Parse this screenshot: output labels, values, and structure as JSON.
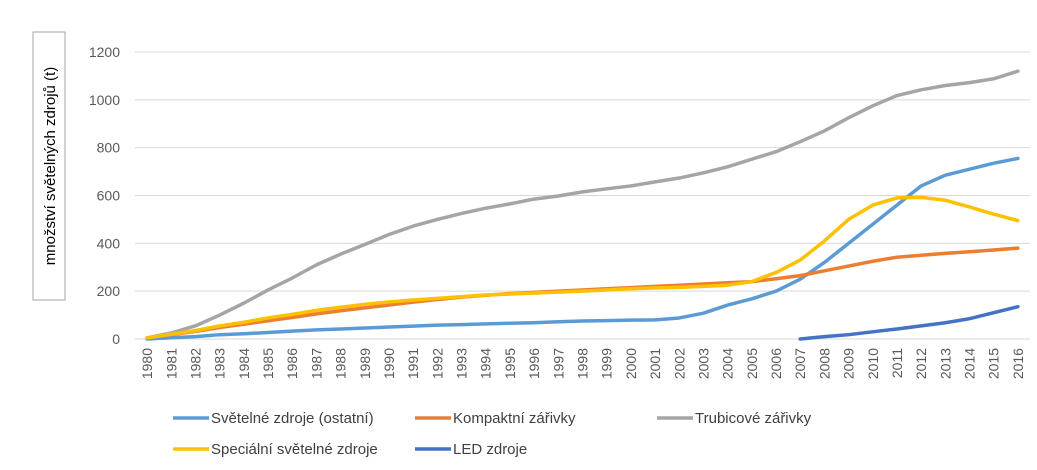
{
  "chart_data": {
    "type": "line",
    "title": "",
    "xlabel": "",
    "ylabel": "množství světelných zdrojů (t)",
    "ylim": [
      0,
      1200
    ],
    "yticks": [
      0,
      200,
      400,
      600,
      800,
      1000,
      1200
    ],
    "grid": "horizontal",
    "legend_position": "bottom",
    "x": [
      "1980",
      "1981",
      "1982",
      "1983",
      "1984",
      "1985",
      "1986",
      "1987",
      "1988",
      "1989",
      "1990",
      "1991",
      "1992",
      "1993",
      "1994",
      "1995",
      "1996",
      "1997",
      "1998",
      "1999",
      "2000",
      "2001",
      "2002",
      "2003",
      "2004",
      "2005",
      "2006",
      "2007",
      "2008",
      "2009",
      "2010",
      "2011",
      "2012",
      "2013",
      "2014",
      "2015",
      "2016"
    ],
    "series": [
      {
        "name": "Světelné zdroje (ostatní)",
        "color": "#5B9BD5",
        "values": [
          0,
          5,
          10,
          18,
          22,
          27,
          33,
          38,
          42,
          46,
          50,
          54,
          58,
          60,
          63,
          66,
          68,
          72,
          75,
          77,
          79,
          80,
          88,
          108,
          142,
          168,
          200,
          250,
          320,
          400,
          480,
          560,
          640,
          685,
          710,
          735,
          755
        ]
      },
      {
        "name": "Kompaktní zářivky",
        "color": "#ED7D31",
        "values": [
          5,
          18,
          32,
          48,
          62,
          76,
          90,
          105,
          118,
          130,
          142,
          154,
          165,
          175,
          183,
          190,
          195,
          200,
          205,
          210,
          215,
          220,
          225,
          230,
          235,
          240,
          252,
          265,
          285,
          305,
          325,
          342,
          350,
          358,
          365,
          372,
          380
        ]
      },
      {
        "name": "Trubicové zářivky",
        "color": "#A5A5A5",
        "values": [
          5,
          25,
          55,
          100,
          150,
          205,
          255,
          310,
          355,
          395,
          437,
          472,
          500,
          525,
          547,
          565,
          585,
          598,
          615,
          628,
          640,
          657,
          673,
          695,
          720,
          752,
          783,
          825,
          870,
          925,
          975,
          1018,
          1042,
          1060,
          1072,
          1088,
          1120
        ]
      },
      {
        "name": "Speciální světelné zdroje",
        "color": "#FFC000",
        "values": [
          5,
          20,
          35,
          55,
          70,
          88,
          103,
          120,
          133,
          145,
          155,
          163,
          170,
          177,
          184,
          188,
          192,
          196,
          200,
          205,
          210,
          214,
          216,
          220,
          225,
          240,
          278,
          330,
          410,
          500,
          560,
          590,
          592,
          580,
          552,
          522,
          495
        ]
      },
      {
        "name": "LED zdroje",
        "color": "#4472C4",
        "values": [
          null,
          null,
          null,
          null,
          null,
          null,
          null,
          null,
          null,
          null,
          null,
          null,
          null,
          null,
          null,
          null,
          null,
          null,
          null,
          null,
          null,
          null,
          null,
          null,
          null,
          null,
          null,
          0,
          10,
          18,
          30,
          42,
          55,
          68,
          85,
          110,
          135
        ]
      }
    ]
  }
}
